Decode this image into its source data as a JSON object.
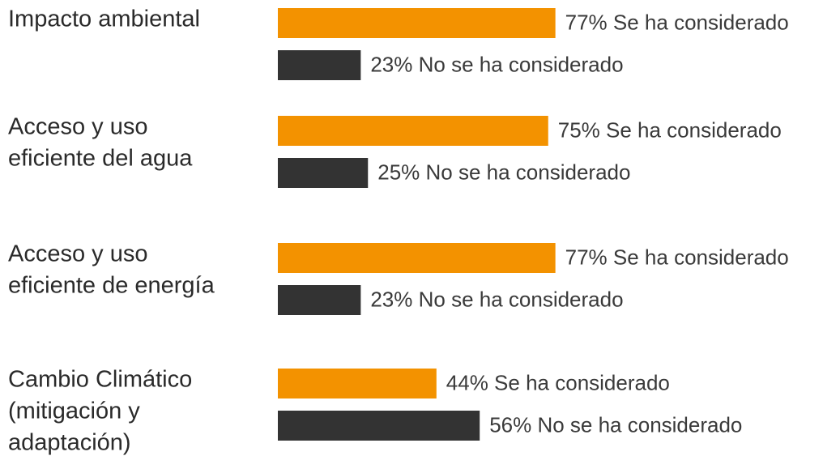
{
  "chart_data": {
    "type": "bar",
    "orientation": "horizontal",
    "categories": [
      [
        "Impacto ambiental"
      ],
      [
        "Acceso y uso",
        "eficiente del agua"
      ],
      [
        "Acceso y uso",
        "eficiente de energía"
      ],
      [
        "Cambio Climático",
        "(mitigación y",
        "adaptación)"
      ]
    ],
    "xlim": [
      0,
      100
    ],
    "series": [
      {
        "color": "#f39200",
        "values": [
          77,
          75,
          77,
          44
        ],
        "value_labels": [
          "77% Se ha considerado",
          "75% Se ha considerado",
          "77% Se ha considerado",
          "44% Se ha considerado"
        ]
      },
      {
        "color": "#333333",
        "values": [
          23,
          25,
          23,
          56
        ],
        "value_labels": [
          "23% No se ha considerado",
          "25% No se ha considerado",
          "23% No se ha considerado",
          "56% No se ha considerado"
        ]
      }
    ]
  }
}
